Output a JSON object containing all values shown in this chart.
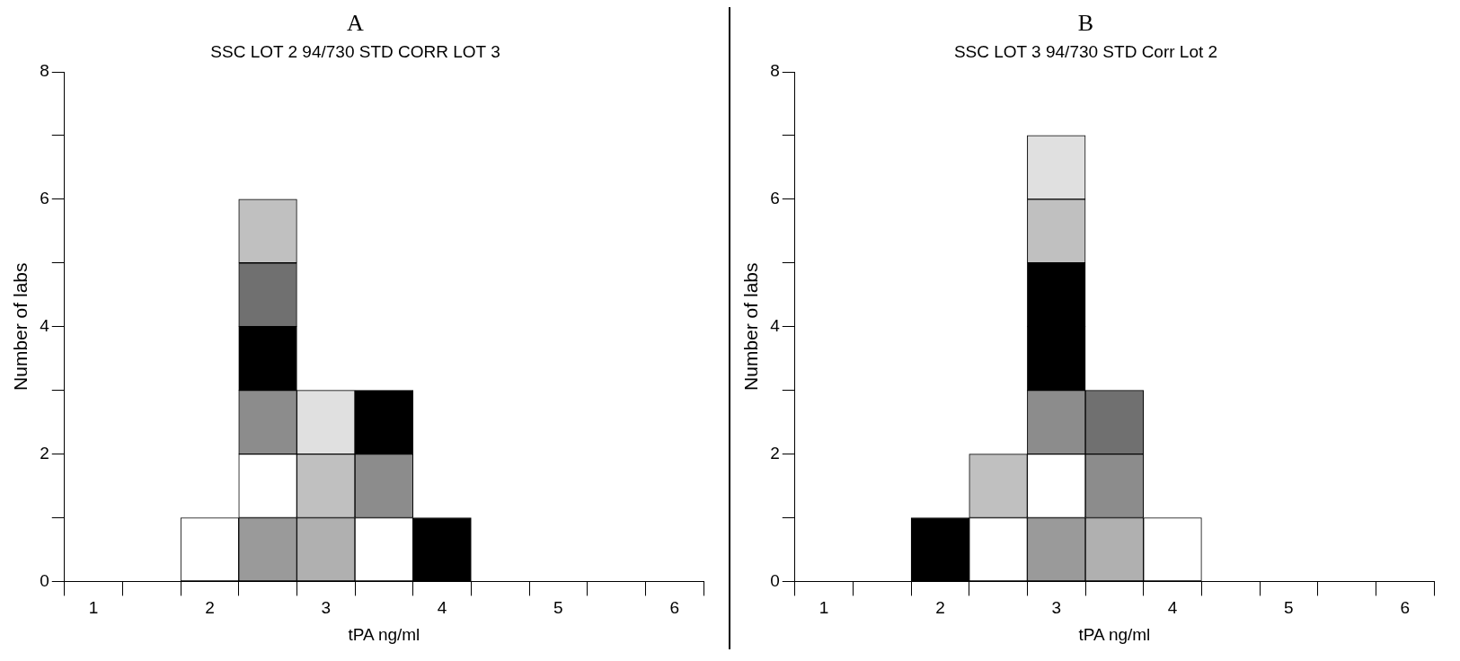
{
  "chart_data": [
    {
      "type": "bar",
      "title": "A",
      "subtitle": "SSC LOT 2 94/730 STD CORR LOT 3",
      "xlabel": "tPA ng/ml",
      "ylabel": "Number of labs",
      "stacked": true,
      "categories": [
        "1",
        null,
        "2",
        null,
        "3",
        null,
        "4",
        null,
        "5",
        null,
        "6"
      ],
      "ylim": [
        0,
        8
      ],
      "yticks": [
        0,
        {
          "value": 1,
          "label": null
        },
        2,
        {
          "value": 3,
          "label": null
        },
        4,
        {
          "value": 5,
          "label": null
        },
        6,
        {
          "value": 7,
          "label": null
        },
        8
      ],
      "series": [
        {
          "values": [
            null,
            null,
            1,
            1,
            1,
            1,
            1,
            null,
            null,
            null,
            null
          ],
          "colors": [
            null,
            null,
            "#ffffff",
            "#9a9a9a",
            "#b0b0b0",
            "#ffffff",
            "#000000",
            null,
            null,
            null,
            null
          ]
        },
        {
          "values": [
            null,
            null,
            null,
            1,
            1,
            1,
            null,
            null,
            null,
            null,
            null
          ],
          "colors": [
            null,
            null,
            null,
            "#ffffff",
            "#c0c0c0",
            "#8c8c8c",
            null,
            null,
            null,
            null,
            null
          ]
        },
        {
          "values": [
            null,
            null,
            null,
            1,
            1,
            1,
            null,
            null,
            null,
            null,
            null
          ],
          "colors": [
            null,
            null,
            null,
            "#8c8c8c",
            "#e0e0e0",
            "#000000",
            null,
            null,
            null,
            null,
            null
          ]
        },
        {
          "values": [
            null,
            null,
            null,
            1,
            null,
            null,
            null,
            null,
            null,
            null,
            null
          ],
          "colors": [
            null,
            null,
            null,
            "#000000",
            null,
            null,
            null,
            null,
            null,
            null,
            null
          ]
        },
        {
          "values": [
            null,
            null,
            null,
            1,
            null,
            null,
            null,
            null,
            null,
            null,
            null
          ],
          "colors": [
            null,
            null,
            null,
            "#707070",
            null,
            null,
            null,
            null,
            null,
            null,
            null
          ]
        },
        {
          "values": [
            null,
            null,
            null,
            1,
            null,
            null,
            null,
            null,
            null,
            null,
            null
          ],
          "colors": [
            null,
            null,
            null,
            "#c0c0c0",
            null,
            null,
            null,
            null,
            null,
            null,
            null
          ]
        }
      ]
    },
    {
      "type": "bar",
      "title": "B",
      "subtitle": "SSC LOT 3 94/730 STD Corr Lot 2",
      "xlabel": "tPA ng/ml",
      "ylabel": "Number of labs",
      "stacked": true,
      "categories": [
        "1",
        null,
        "2",
        null,
        "3",
        null,
        "4",
        null,
        "5",
        null,
        "6"
      ],
      "ylim": [
        0,
        8
      ],
      "yticks": [
        0,
        {
          "value": 1,
          "label": null
        },
        2,
        {
          "value": 3,
          "label": null
        },
        4,
        {
          "value": 5,
          "label": null
        },
        6,
        {
          "value": 7,
          "label": null
        },
        8
      ],
      "series": [
        {
          "values": [
            null,
            null,
            1,
            1,
            1,
            1,
            1,
            null,
            null,
            null,
            null
          ],
          "colors": [
            null,
            null,
            "#000000",
            "#ffffff",
            "#9a9a9a",
            "#b0b0b0",
            "#ffffff",
            null,
            null,
            null,
            null
          ]
        },
        {
          "values": [
            null,
            null,
            null,
            1,
            1,
            1,
            null,
            null,
            null,
            null,
            null
          ],
          "colors": [
            null,
            null,
            null,
            "#c0c0c0",
            "#ffffff",
            "#8c8c8c",
            null,
            null,
            null,
            null,
            null
          ]
        },
        {
          "values": [
            null,
            null,
            null,
            null,
            1,
            1,
            null,
            null,
            null,
            null,
            null
          ],
          "colors": [
            null,
            null,
            null,
            null,
            "#8c8c8c",
            "#707070",
            null,
            null,
            null,
            null,
            null
          ]
        },
        {
          "values": [
            null,
            null,
            null,
            null,
            1,
            null,
            null,
            null,
            null,
            null,
            null
          ],
          "colors": [
            null,
            null,
            null,
            null,
            "#000000",
            null,
            null,
            null,
            null,
            null,
            null
          ]
        },
        {
          "values": [
            null,
            null,
            null,
            null,
            1,
            null,
            null,
            null,
            null,
            null,
            null
          ],
          "colors": [
            null,
            null,
            null,
            null,
            "#000000",
            null,
            null,
            null,
            null,
            null,
            null
          ]
        },
        {
          "values": [
            null,
            null,
            null,
            null,
            1,
            null,
            null,
            null,
            null,
            null,
            null
          ],
          "colors": [
            null,
            null,
            null,
            null,
            "#c0c0c0",
            null,
            null,
            null,
            null,
            null,
            null
          ]
        },
        {
          "values": [
            null,
            null,
            null,
            null,
            1,
            null,
            null,
            null,
            null,
            null,
            null
          ],
          "colors": [
            null,
            null,
            null,
            null,
            "#e0e0e0",
            null,
            null,
            null,
            null,
            null,
            null
          ]
        }
      ]
    }
  ]
}
